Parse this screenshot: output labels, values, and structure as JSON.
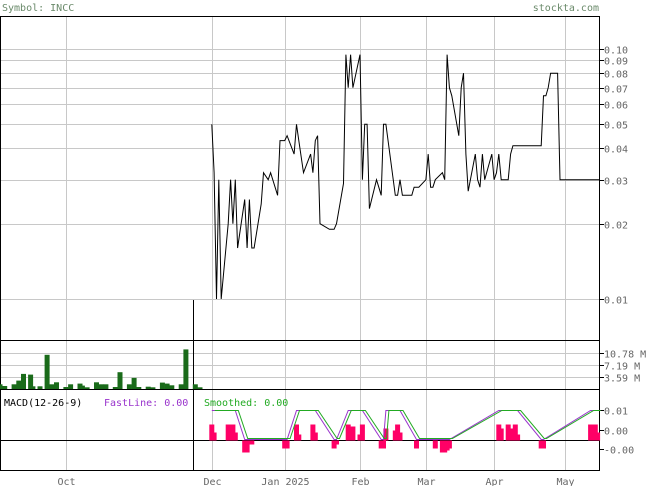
{
  "header": {
    "symbol_label": "Symbol: INCC",
    "site": "stockta.com"
  },
  "macd": {
    "label": "MACD(12-26-9)",
    "fast_label": "FastLine: 0.00",
    "smoothed_label": "Smoothed: 0.00"
  },
  "colors": {
    "price_line": "#000000",
    "volume_bar": "#1a6b1a",
    "fast_line": "#9933cc",
    "smoothed_line": "#22aa22",
    "histogram": "#ff0066",
    "header_text": "#6a8a6a",
    "axis_text": "#666666",
    "grid": "#c8c8c8"
  },
  "chart_data": [
    {
      "type": "line",
      "scale": "log",
      "y_tick_labels": [
        "0.10",
        "0.09",
        "0.08",
        "0.07",
        "0.06",
        "0.05",
        "0.04",
        "0.03",
        "0.02",
        "0.01"
      ],
      "y_ticks": [
        0.1,
        0.09,
        0.08,
        0.07,
        0.06,
        0.05,
        0.04,
        0.03,
        0.02,
        0.01
      ],
      "x_tick_labels": [
        "Oct",
        "Dec",
        "Jan 2025",
        "Feb",
        "Mar",
        "Apr",
        "May"
      ],
      "x_ticks": [
        "2024-10-01",
        "2024-12-02",
        "2025-01-02",
        "2025-02-03",
        "2025-03-03",
        "2025-04-01",
        "2025-05-01"
      ],
      "x_range": [
        "2024-09-03",
        "2025-05-16"
      ],
      "grid": true,
      "series": [
        {
          "x": [
            "2024-12-02",
            "2024-12-03",
            "2024-12-04",
            "2024-12-05",
            "2024-12-06",
            "2024-12-09",
            "2024-12-10",
            "2024-12-11",
            "2024-12-12",
            "2024-12-13",
            "2024-12-16",
            "2024-12-17",
            "2024-12-18",
            "2024-12-19",
            "2024-12-20",
            "2024-12-23",
            "2024-12-24",
            "2024-12-26",
            "2024-12-27",
            "2024-12-30",
            "2024-12-31",
            "2025-01-02",
            "2025-01-03",
            "2025-01-06",
            "2025-01-07",
            "2025-01-08",
            "2025-01-10",
            "2025-01-13",
            "2025-01-14",
            "2025-01-15",
            "2025-01-16",
            "2025-01-17",
            "2025-01-21",
            "2025-01-22",
            "2025-01-23",
            "2025-01-24",
            "2025-01-27",
            "2025-01-28",
            "2025-01-29",
            "2025-01-30",
            "2025-01-31",
            "2025-02-03",
            "2025-02-04",
            "2025-02-05",
            "2025-02-06",
            "2025-02-07",
            "2025-02-10",
            "2025-02-11",
            "2025-02-12",
            "2025-02-13",
            "2025-02-14",
            "2025-02-18",
            "2025-02-19",
            "2025-02-20",
            "2025-02-21",
            "2025-02-24",
            "2025-02-25",
            "2025-02-26",
            "2025-02-27",
            "2025-02-28",
            "2025-03-03",
            "2025-03-04",
            "2025-03-05",
            "2025-03-06",
            "2025-03-07",
            "2025-03-10",
            "2025-03-11",
            "2025-03-12",
            "2025-03-13",
            "2025-03-14",
            "2025-03-17",
            "2025-03-18",
            "2025-03-19",
            "2025-03-20",
            "2025-03-21",
            "2025-03-24",
            "2025-03-25",
            "2025-03-26",
            "2025-03-27",
            "2025-03-28",
            "2025-03-31",
            "2025-04-01",
            "2025-04-02",
            "2025-04-03",
            "2025-04-04",
            "2025-04-07",
            "2025-04-08",
            "2025-04-09",
            "2025-04-10",
            "2025-04-11",
            "2025-04-14",
            "2025-04-15",
            "2025-04-16",
            "2025-04-17",
            "2025-04-21",
            "2025-04-22",
            "2025-04-23",
            "2025-04-24",
            "2025-04-25",
            "2025-04-28",
            "2025-04-29",
            "2025-04-30",
            "2025-05-01",
            "2025-05-02",
            "2025-05-05",
            "2025-05-06",
            "2025-05-07",
            "2025-05-08",
            "2025-05-09",
            "2025-05-12",
            "2025-05-13",
            "2025-05-14",
            "2025-05-15",
            "2025-05-16"
          ],
          "y": [
            0.05,
            0.032,
            0.01,
            0.03,
            0.01,
            0.02,
            0.03,
            0.02,
            0.03,
            0.016,
            0.025,
            0.016,
            0.025,
            0.016,
            0.016,
            0.024,
            0.032,
            0.03,
            0.032,
            0.026,
            0.043,
            0.043,
            0.045,
            0.038,
            0.05,
            0.043,
            0.032,
            0.038,
            0.032,
            0.043,
            0.045,
            0.02,
            0.019,
            0.019,
            0.019,
            0.02,
            0.029,
            0.095,
            0.07,
            0.095,
            0.07,
            0.095,
            0.03,
            0.05,
            0.05,
            0.023,
            0.03,
            0.028,
            0.026,
            0.05,
            0.05,
            0.026,
            0.026,
            0.03,
            0.026,
            0.026,
            0.026,
            0.028,
            0.028,
            0.028,
            0.03,
            0.038,
            0.028,
            0.028,
            0.03,
            0.032,
            0.03,
            0.095,
            0.07,
            0.065,
            0.045,
            0.07,
            0.08,
            0.038,
            0.027,
            0.038,
            0.03,
            0.028,
            0.038,
            0.03,
            0.038,
            0.03,
            0.032,
            0.038,
            0.03,
            0.03,
            0.038,
            0.041,
            0.041,
            0.041,
            0.041,
            0.041,
            0.041,
            0.041,
            0.041,
            0.065,
            0.065,
            0.07,
            0.08,
            0.08,
            0.03,
            0.03,
            0.03,
            0.03,
            0.03,
            0.03,
            0.03,
            0.03,
            0.03,
            0.03,
            0.03,
            0.03,
            0.03,
            0.03
          ]
        }
      ]
    },
    {
      "type": "bar",
      "y_tick_labels": [
        "10.78 M",
        "7.19 M",
        "3.59 M"
      ],
      "y_ticks": [
        10.78,
        7.19,
        3.59
      ],
      "ylim": [
        0,
        14.3
      ],
      "x": [
        "2024-09-03",
        "2024-09-05",
        "2024-09-09",
        "2024-09-11",
        "2024-09-13",
        "2024-09-16",
        "2024-09-17",
        "2024-09-20",
        "2024-09-23",
        "2024-09-25",
        "2024-09-27",
        "2024-10-01",
        "2024-10-03",
        "2024-10-07",
        "2024-10-08",
        "2024-10-10",
        "2024-10-14",
        "2024-10-16",
        "2024-10-18",
        "2024-10-22",
        "2024-10-24",
        "2024-10-28",
        "2024-10-30",
        "2024-11-01",
        "2024-11-05",
        "2024-11-07",
        "2024-11-11",
        "2024-11-13",
        "2024-11-15",
        "2024-11-19",
        "2024-11-21",
        "2024-11-25",
        "2024-11-27"
      ],
      "values": [
        1.4,
        0.9,
        1.4,
        2.5,
        4.5,
        4.3,
        0.8,
        0.8,
        10.2,
        1.4,
        2.0,
        0.6,
        1.4,
        1.6,
        1.0,
        0.5,
        2.0,
        1.4,
        1.4,
        0.6,
        5.0,
        1.4,
        3.3,
        0.6,
        0.7,
        0.5,
        1.9,
        1.6,
        1.1,
        1.4,
        11.8,
        1.4,
        0.5
      ]
    },
    {
      "type": "area",
      "y_tick_labels": [
        "0.01",
        "0.00",
        "-0.00"
      ],
      "y_ticks": [
        0.01,
        0.0,
        -0.004
      ],
      "series": [
        {
          "name": "MACD histogram",
          "x": [
            "2024-12-02",
            "2024-12-03",
            "2024-12-09",
            "2024-12-10",
            "2024-12-11",
            "2024-12-12",
            "2024-12-16",
            "2024-12-17",
            "2024-12-18",
            "2024-12-19",
            "2025-01-02",
            "2025-01-03",
            "2025-01-07",
            "2025-01-08",
            "2025-01-14",
            "2025-01-15",
            "2025-01-23",
            "2025-01-24",
            "2025-01-29",
            "2025-01-30",
            "2025-01-31",
            "2025-02-03",
            "2025-02-04",
            "2025-02-12",
            "2025-02-13",
            "2025-02-14",
            "2025-02-18",
            "2025-02-19",
            "2025-02-20",
            "2025-02-27",
            "2025-03-07",
            "2025-03-10",
            "2025-03-11",
            "2025-03-12",
            "2025-03-13",
            "2025-04-03",
            "2025-04-04",
            "2025-04-07",
            "2025-04-08",
            "2025-04-09",
            "2025-04-10",
            "2025-04-11",
            "2025-04-21",
            "2025-04-22",
            "2025-05-12",
            "2025-05-13",
            "2025-05-14",
            "2025-05-15"
          ],
          "values": [
            0.008,
            0.004,
            0.008,
            0.004,
            0.008,
            0.004,
            -0.006,
            -0.006,
            -0.002,
            -0.002,
            -0.004,
            -0.004,
            0.008,
            0.003,
            0.008,
            0.004,
            -0.004,
            -0.002,
            0.008,
            0.004,
            0.007,
            0.003,
            0.008,
            -0.004,
            -0.004,
            0.006,
            0.005,
            0.008,
            0.004,
            -0.004,
            -0.004,
            -0.006,
            -0.006,
            -0.005,
            -0.004,
            0.008,
            0.006,
            0.008,
            0.004,
            0.006,
            0.008,
            0.003,
            -0.004,
            -0.004,
            0.008,
            0.004,
            0.008,
            0.004
          ]
        }
      ]
    }
  ]
}
